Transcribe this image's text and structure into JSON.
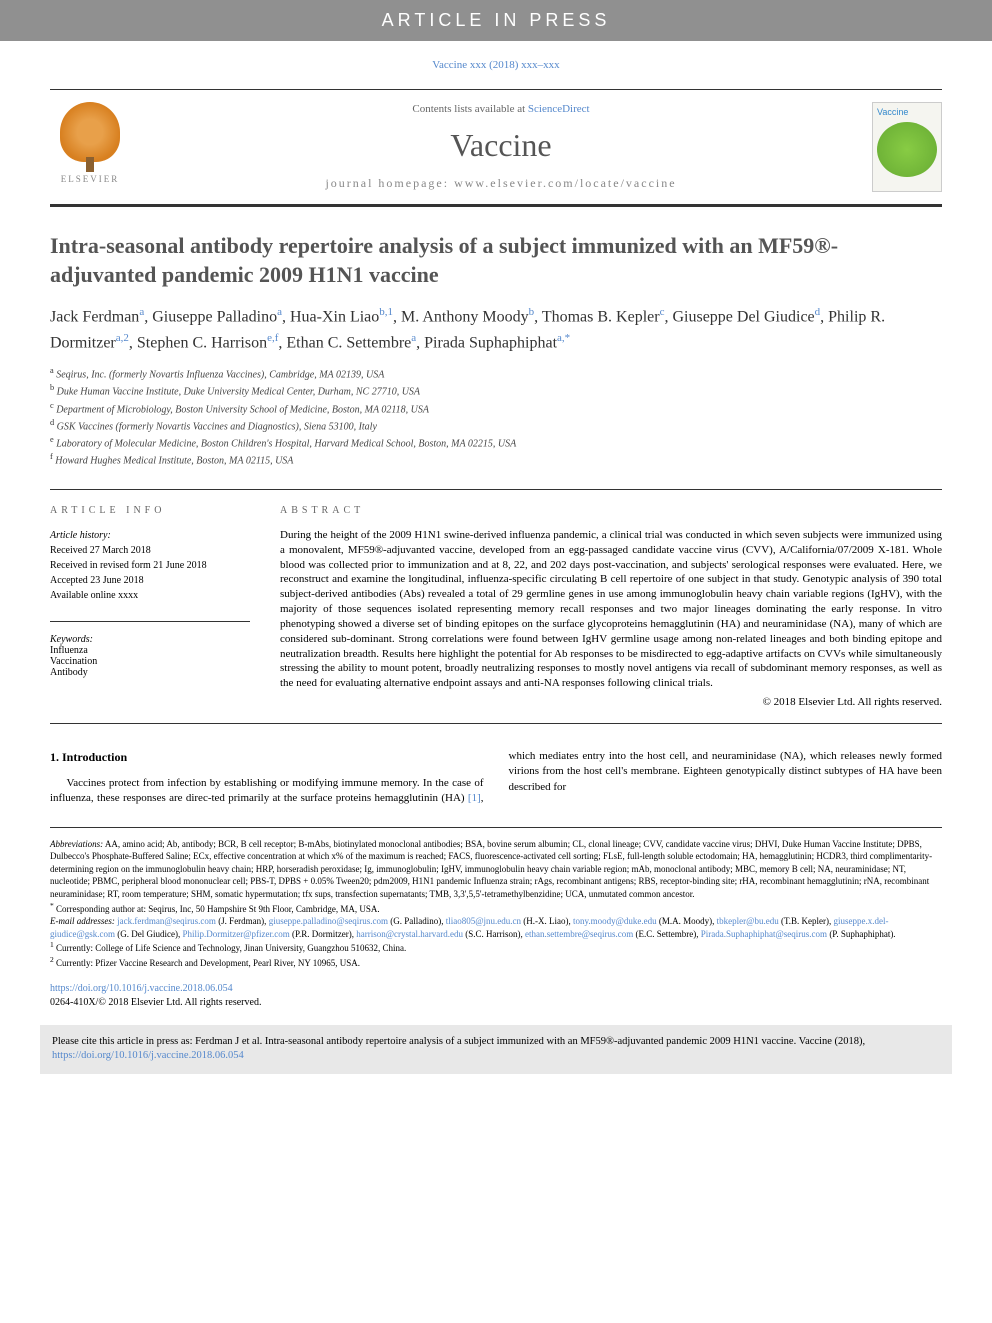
{
  "banner": {
    "text": "ARTICLE IN PRESS"
  },
  "journal_ref": "Vaccine xxx (2018) xxx–xxx",
  "header": {
    "publisher": "ELSEVIER",
    "contents_text": "Contents lists available at ",
    "contents_link": "ScienceDirect",
    "journal_name": "Vaccine",
    "homepage_line": "journal homepage: www.elsevier.com/locate/vaccine",
    "cover_title": "Vaccine"
  },
  "article": {
    "title": "Intra-seasonal antibody repertoire analysis of a subject immunized with an MF59®-adjuvanted pandemic 2009 H1N1 vaccine",
    "authors_html": "Jack Ferdman<sup>a</sup>, Giuseppe Palladino<sup>a</sup>, Hua-Xin Liao<sup>b,1</sup>, M. Anthony Moody<sup>b</sup>, Thomas B. Kepler<sup>c</sup>, Giuseppe Del Giudice<sup>d</sup>, Philip R. Dormitzer<sup>a,2</sup>, Stephen C. Harrison<sup>e,f</sup>, Ethan C. Settembre<sup>a</sup>, Pirada Suphaphiphat<sup>a,*</sup>",
    "affiliations": [
      {
        "key": "a",
        "text": "Seqirus, Inc. (formerly Novartis Influenza Vaccines), Cambridge, MA 02139, USA"
      },
      {
        "key": "b",
        "text": "Duke Human Vaccine Institute, Duke University Medical Center, Durham, NC 27710, USA"
      },
      {
        "key": "c",
        "text": "Department of Microbiology, Boston University School of Medicine, Boston, MA 02118, USA"
      },
      {
        "key": "d",
        "text": "GSK Vaccines (formerly Novartis Vaccines and Diagnostics), Siena 53100, Italy"
      },
      {
        "key": "e",
        "text": "Laboratory of Molecular Medicine, Boston Children's Hospital, Harvard Medical School, Boston, MA 02215, USA"
      },
      {
        "key": "f",
        "text": "Howard Hughes Medical Institute, Boston, MA 02115, USA"
      }
    ]
  },
  "info": {
    "heading": "ARTICLE INFO",
    "history_label": "Article history:",
    "history": [
      "Received 27 March 2018",
      "Received in revised form 21 June 2018",
      "Accepted 23 June 2018",
      "Available online xxxx"
    ],
    "keywords_label": "Keywords:",
    "keywords": [
      "Influenza",
      "Vaccination",
      "Antibody"
    ]
  },
  "abstract": {
    "heading": "ABSTRACT",
    "text": "During the height of the 2009 H1N1 swine-derived influenza pandemic, a clinical trial was conducted in which seven subjects were immunized using a monovalent, MF59®-adjuvanted vaccine, developed from an egg-passaged candidate vaccine virus (CVV), A/California/07/2009 X-181. Whole blood was collected prior to immunization and at 8, 22, and 202 days post-vaccination, and subjects' serological responses were evaluated. Here, we reconstruct and examine the longitudinal, influenza-specific circulating B cell repertoire of one subject in that study. Genotypic analysis of 390 total subject-derived antibodies (Abs) revealed a total of 29 germline genes in use among immunoglobulin heavy chain variable regions (IgHV), with the majority of those sequences isolated representing memory recall responses and two major lineages dominating the early response. In vitro phenotyping showed a diverse set of binding epitopes on the surface glycoproteins hemagglutinin (HA) and neuraminidase (NA), many of which are considered sub-dominant. Strong correlations were found between IgHV germline usage among non-related lineages and both binding epitope and neutralization breadth. Results here highlight the potential for Ab responses to be misdirected to egg-adaptive artifacts on CVVs while simultaneously stressing the ability to mount potent, broadly neutralizing responses to mostly novel antigens via recall of subdominant memory responses, as well as the need for evaluating alternative endpoint assays and anti-NA responses following clinical trials.",
    "copyright": "© 2018 Elsevier Ltd. All rights reserved."
  },
  "intro": {
    "heading": "1. Introduction",
    "para1": "Vaccines protect from infection by establishing or modifying immune memory. In the case of influenza, these responses are direc-",
    "para2": "ted primarily at the surface proteins hemagglutinin (HA) [1], which mediates entry into the host cell, and neuraminidase (NA), which releases newly formed virions from the host cell's membrane. Eighteen genotypically distinct subtypes of HA have been described for"
  },
  "footer": {
    "abbrev_label": "Abbreviations:",
    "abbrev_text": " AA, amino acid; Ab, antibody; BCR, B cell receptor; B-mAbs, biotinylated monoclonal antibodies; BSA, bovine serum albumin; CL, clonal lineage; CVV, candidate vaccine virus; DHVI, Duke Human Vaccine Institute; DPBS, Dulbecco's Phosphate-Buffered Saline; ECx, effective concentration at which x% of the maximum is reached; FACS, fluorescence-activated cell sorting; FLsE, full-length soluble ectodomain; HA, hemagglutinin; HCDR3, third complimentarity-determining region on the immunoglobulin heavy chain; HRP, horseradish peroxidase; Ig, immunoglobulin; IgHV, immunoglobulin heavy chain variable region; mAb, monoclonal antibody; MBC, memory B cell; NA, neuraminidase; NT, nucleotide; PBMC, peripheral blood mononuclear cell; PBS-T, DPBS + 0.05% Tween20; pdm2009, H1N1 pandemic Influenza strain; rAgs, recombinant antigens; RBS, receptor-binding site; rHA, recombinant hemagglutinin; rNA, recombinant neuraminidase; RT, room temperature; SHM, somatic hypermutation; tfx sups, transfection supernatants; TMB, 3,3',5,5'-tetramethylbenzidine; UCA, unmutated common ancestor.",
    "corr_marker": "*",
    "corr_text": " Corresponding author at: Seqirus, Inc, 50 Hampshire St 9th Floor, Cambridge, MA, USA.",
    "email_label": "E-mail addresses:",
    "emails_html": " <a>jack.ferdman@seqirus.com</a> (J. Ferdman), <a>giuseppe.palladino@seqirus.com</a> (G. Palladino), <a>tliao805@jnu.edu.cn</a> (H.-X. Liao), <a>tony.moody@duke.edu</a> (M.A. Moody), <a>tbkepler@bu.edu</a> (T.B. Kepler), <a>giuseppe.x.del-giudice@gsk.com</a> (G. Del Giudice), <a>Philip.Dormitzer@pfizer.com</a> (P.R. Dormitzer), <a>harrison@crystal.harvard.edu</a> (S.C. Harrison), <a>ethan.settembre@seqirus.com</a> (E.C. Settembre), <a>Pirada.Suphaphiphat@seqirus.com</a> (P. Suphaphiphat).",
    "note1": "Currently: College of Life Science and Technology, Jinan University, Guangzhou 510632, China.",
    "note2": "Currently: Pfizer Vaccine Research and Development, Pearl River, NY 10965, USA.",
    "doi": "https://doi.org/10.1016/j.vaccine.2018.06.054",
    "issn": "0264-410X/© 2018 Elsevier Ltd. All rights reserved."
  },
  "cite_box": {
    "text": "Please cite this article in press as: Ferdman J et al. Intra-seasonal antibody repertoire analysis of a subject immunized with an MF59®-adjuvanted pandemic 2009 H1N1 vaccine. Vaccine (2018), ",
    "link": "https://doi.org/10.1016/j.vaccine.2018.06.054"
  },
  "colors": {
    "banner_bg": "#909090",
    "link": "#5588cc",
    "heading": "#555555",
    "rule": "#333333"
  }
}
